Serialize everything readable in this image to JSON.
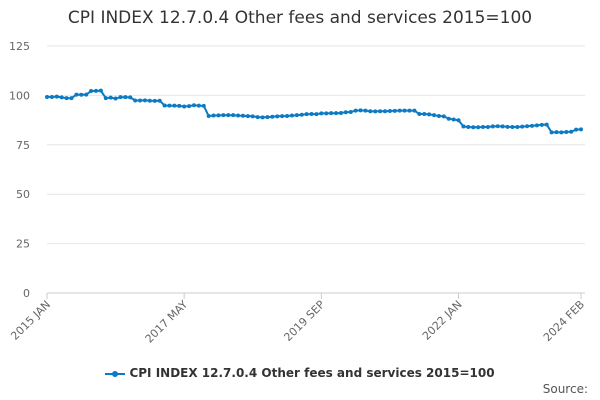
{
  "chart_data": {
    "type": "line",
    "title": "CPI INDEX 12.7.0.4 Other fees and services 2015=100",
    "x_start": "2015 JAN",
    "x_end": "2024 FEB",
    "frequency": "monthly",
    "x_tick_labels": [
      "2015 JAN",
      "2017 MAY",
      "2019 SEP",
      "2022 JAN",
      "2024 FEB"
    ],
    "x_tick_index": [
      0,
      28,
      56,
      84,
      109
    ],
    "y_ticks": [
      "0",
      "25",
      "50",
      "75",
      "100",
      "125"
    ],
    "ylim": [
      0,
      125
    ],
    "grid": "horizontal",
    "legend_position": "bottom",
    "color": "#0b7bc4",
    "series": [
      {
        "name": "CPI INDEX 12.7.0.4 Other fees and services 2015=100",
        "values": [
          99.2,
          99.2,
          99.4,
          99.0,
          98.6,
          98.6,
          100.4,
          100.3,
          100.4,
          102.2,
          102.3,
          102.4,
          98.6,
          98.9,
          98.4,
          99.1,
          99.1,
          99.0,
          97.4,
          97.4,
          97.5,
          97.3,
          97.2,
          97.3,
          94.9,
          94.8,
          94.8,
          94.7,
          94.4,
          94.6,
          95.0,
          94.8,
          94.7,
          89.6,
          89.8,
          89.9,
          90.0,
          90.0,
          90.0,
          89.8,
          89.7,
          89.5,
          89.4,
          89.0,
          88.9,
          89.0,
          89.2,
          89.4,
          89.5,
          89.6,
          89.8,
          90.0,
          90.2,
          90.5,
          90.6,
          90.5,
          90.9,
          90.9,
          91.0,
          91.0,
          91.1,
          91.5,
          91.6,
          92.3,
          92.4,
          92.3,
          92.0,
          91.9,
          92.0,
          92.0,
          92.1,
          92.2,
          92.3,
          92.3,
          92.3,
          92.3,
          90.6,
          90.6,
          90.4,
          90.0,
          89.6,
          89.4,
          88.2,
          87.8,
          87.4,
          84.3,
          84.0,
          83.9,
          83.9,
          84.0,
          84.0,
          84.3,
          84.4,
          84.3,
          84.1,
          84.0,
          84.0,
          84.2,
          84.4,
          84.6,
          84.8,
          85.1,
          85.2,
          81.3,
          81.4,
          81.3,
          81.5,
          81.6,
          82.7,
          82.8
        ]
      }
    ]
  },
  "source_label": "Source:"
}
